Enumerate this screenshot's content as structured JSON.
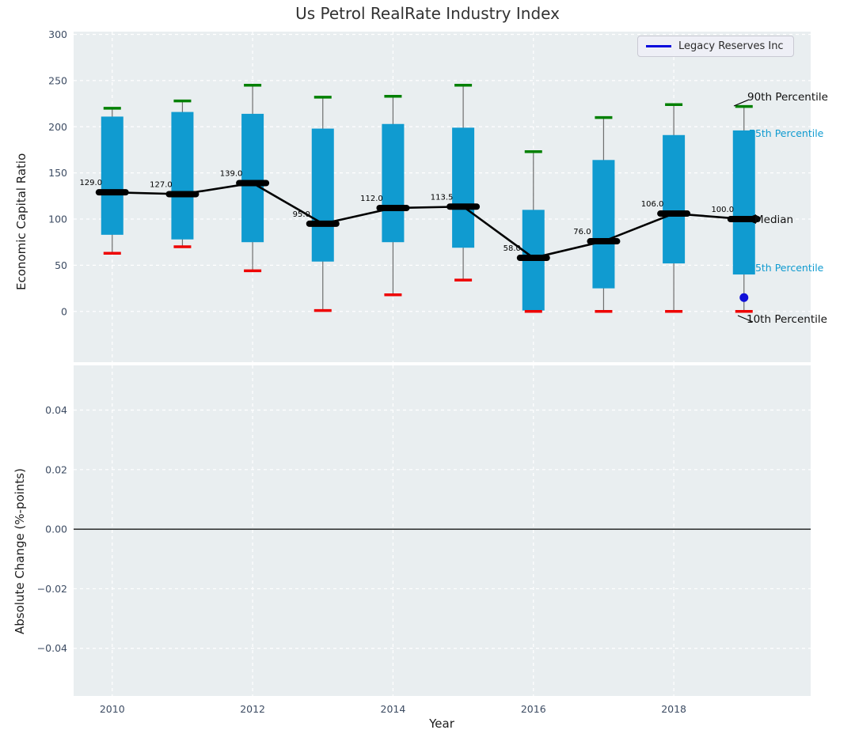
{
  "title": "Us Petrol RealRate Industry Index",
  "legend": {
    "label": "Legacy Reserves Inc"
  },
  "axes": {
    "top_ylabel": "Economic Capital Ratio",
    "bottom_ylabel": "Absolute Change (%-points)",
    "xlabel": "Year"
  },
  "annotations": {
    "p90": "90th Percentile",
    "p75": "75th Percentile",
    "median": "Median",
    "p25": "25th Percentile",
    "p10": "10th Percentile"
  },
  "colors": {
    "box": "#109bd0",
    "p90_cap": "#008000",
    "p10_cap": "#ee0000",
    "median": "#000000",
    "whisker": "#6e6e6e",
    "company_point": "#1010d8",
    "legend_line": "#0808dd",
    "plot_bg": "#e9eef0",
    "grid": "#ffffff",
    "tick_label": "#3d4c63",
    "annotation_accent": "#109bd0"
  },
  "chart_data": [
    {
      "type": "boxplot",
      "title": "Us Petrol RealRate Industry Index",
      "ylabel": "Economic Capital Ratio",
      "xlabel": "",
      "ylim": [
        -55,
        303
      ],
      "yticks": [
        0,
        50,
        100,
        150,
        200,
        250,
        300
      ],
      "xlim": [
        2009.45,
        2019.95
      ],
      "xticks": [
        2010,
        2012,
        2014,
        2016,
        2018
      ],
      "grid": true,
      "legend_position": "upper right",
      "years": [
        2010,
        2011,
        2012,
        2013,
        2014,
        2015,
        2016,
        2017,
        2018,
        2019
      ],
      "series": [
        {
          "name": "90th Percentile",
          "values": [
            220,
            228,
            245,
            232,
            233,
            245,
            173,
            210,
            224,
            222
          ]
        },
        {
          "name": "75th Percentile",
          "values": [
            211,
            216,
            214,
            198,
            203,
            199,
            110,
            164,
            191,
            196
          ]
        },
        {
          "name": "Median",
          "values": [
            129,
            127,
            139,
            95,
            112,
            113.5,
            58,
            76,
            106,
            100
          ]
        },
        {
          "name": "25th Percentile",
          "values": [
            83,
            78,
            75,
            54,
            75,
            69,
            1,
            25,
            52,
            40
          ]
        },
        {
          "name": "10th Percentile",
          "values": [
            63,
            70,
            44,
            1,
            18,
            34,
            0,
            0,
            0,
            0
          ]
        }
      ],
      "median_labels": [
        "129.0",
        "127.0",
        "139.0",
        "95.0",
        "112.0",
        "113.5",
        "58.0",
        "76.0",
        "106.0",
        "100.0"
      ],
      "company_point": {
        "name": "Legacy Reserves Inc",
        "x": 2019,
        "y": 15
      }
    },
    {
      "type": "line",
      "ylabel": "Absolute Change (%-points)",
      "xlabel": "Year",
      "ylim": [
        -0.056,
        0.055
      ],
      "yticks": [
        0.04,
        0.02,
        0,
        -0.02,
        -0.04
      ],
      "ytick_labels": [
        "0.04",
        "0.02",
        "0.00",
        "−0.02",
        "−0.04"
      ],
      "xticks": [
        2010,
        2012,
        2014,
        2016,
        2018
      ],
      "grid": true,
      "zero_line": 0,
      "series": []
    }
  ]
}
